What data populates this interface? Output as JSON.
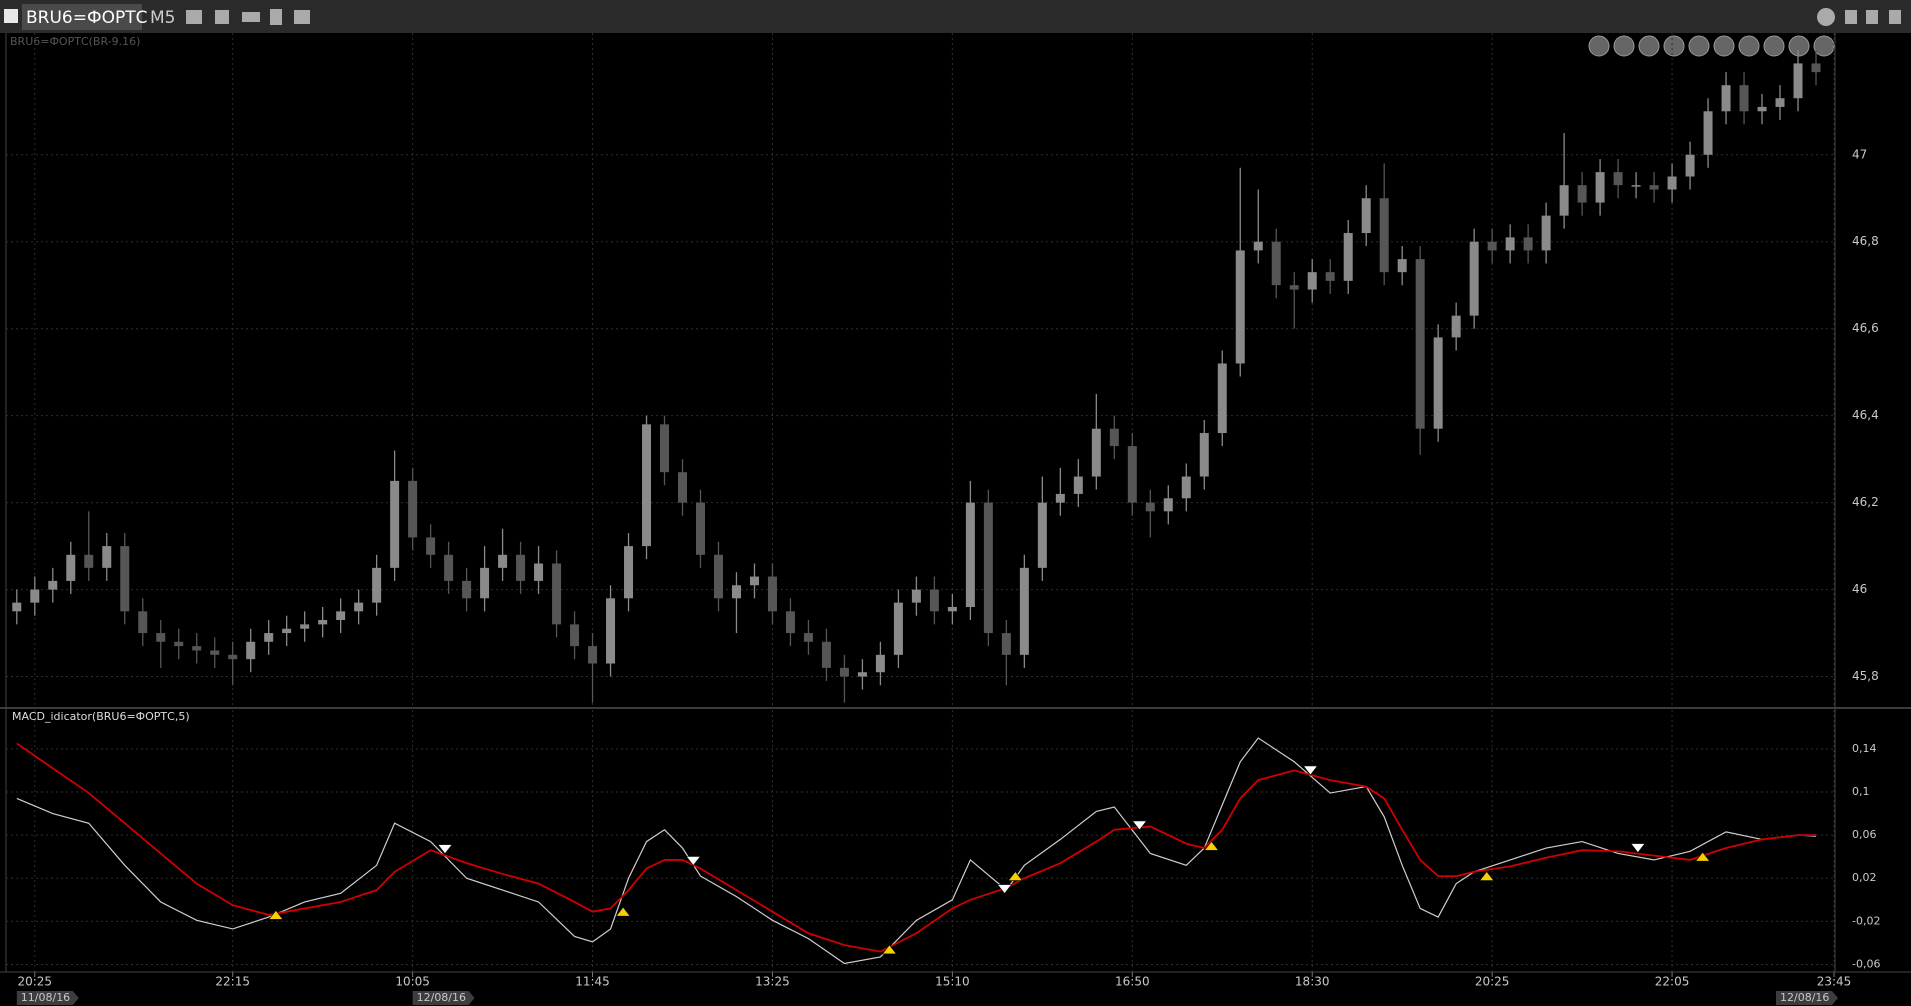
{
  "toolbar": {
    "symbol": "BRU6=ФОРТС",
    "timeframe": "M5"
  },
  "chart_data": [
    {
      "type": "candlestick",
      "title": "BRU6=ФОРТС(BR-9.16)",
      "up_color": "#8a8a8a",
      "down_color": "#565656",
      "grid": true,
      "xlim": [
        -0.6,
        101
      ],
      "xticks": [
        {
          "value": 1,
          "label": "20:25"
        },
        {
          "value": 12,
          "label": "22:15"
        },
        {
          "value": 22,
          "label": "10:05"
        },
        {
          "value": 32,
          "label": "11:45"
        },
        {
          "value": 42,
          "label": "13:25"
        },
        {
          "value": 52,
          "label": "15:10"
        },
        {
          "value": 62,
          "label": "16:50"
        },
        {
          "value": 72,
          "label": "18:30"
        },
        {
          "value": 82,
          "label": "20:25"
        },
        {
          "value": 92,
          "label": "22:05"
        },
        {
          "value": 101,
          "label": "23:45"
        }
      ],
      "ylim": [
        45.73,
        47.28
      ],
      "yticks": [
        {
          "value": 45.8,
          "label": "45,8"
        },
        46,
        {
          "value": 46.2,
          "label": "46,2"
        },
        {
          "value": 46.4,
          "label": "46,4"
        },
        {
          "value": 46.6,
          "label": "46,6"
        },
        {
          "value": 46.8,
          "label": "46,8"
        },
        47
      ],
      "open": [
        45.95,
        45.97,
        46.0,
        46.02,
        46.08,
        46.05,
        46.1,
        45.95,
        45.9,
        45.88,
        45.87,
        45.86,
        45.85,
        45.84,
        45.88,
        45.9,
        45.91,
        45.92,
        45.93,
        45.95,
        45.97,
        46.05,
        46.25,
        46.12,
        46.08,
        46.02,
        45.98,
        46.05,
        46.08,
        46.02,
        46.06,
        45.92,
        45.87,
        45.83,
        45.98,
        46.1,
        46.38,
        46.27,
        46.2,
        46.08,
        45.98,
        46.01,
        46.03,
        45.95,
        45.9,
        45.88,
        45.82,
        45.8,
        45.81,
        45.85,
        45.97,
        46.0,
        45.95,
        45.96,
        46.2,
        45.9,
        45.85,
        46.05,
        46.2,
        46.22,
        46.26,
        46.37,
        46.33,
        46.2,
        46.18,
        46.21,
        46.26,
        46.36,
        46.52,
        46.78,
        46.8,
        46.7,
        46.69,
        46.73,
        46.71,
        46.82,
        46.9,
        46.73,
        46.76,
        46.37,
        46.58,
        46.63,
        46.8,
        46.78,
        46.81,
        46.78,
        46.86,
        46.93,
        46.89,
        46.96,
        46.93,
        46.93,
        46.92,
        46.95,
        47.0,
        47.1,
        47.16,
        47.1,
        47.11,
        47.13,
        47.21
      ],
      "high": [
        46.0,
        46.03,
        46.05,
        46.11,
        46.18,
        46.13,
        46.13,
        45.98,
        45.93,
        45.91,
        45.9,
        45.89,
        45.88,
        45.91,
        45.93,
        45.94,
        45.95,
        45.96,
        45.98,
        46.0,
        46.08,
        46.32,
        46.28,
        46.15,
        46.11,
        46.05,
        46.1,
        46.14,
        46.11,
        46.1,
        46.09,
        45.95,
        45.9,
        46.01,
        46.13,
        46.4,
        46.4,
        46.3,
        46.23,
        46.11,
        46.04,
        46.06,
        46.06,
        45.98,
        45.93,
        45.91,
        45.85,
        45.84,
        45.88,
        46.0,
        46.03,
        46.03,
        45.99,
        46.25,
        46.23,
        45.93,
        46.08,
        46.26,
        46.28,
        46.3,
        46.45,
        46.4,
        46.36,
        46.23,
        46.24,
        46.29,
        46.39,
        46.55,
        46.97,
        46.92,
        46.83,
        46.73,
        46.76,
        46.76,
        46.85,
        46.93,
        46.98,
        46.79,
        46.79,
        46.61,
        46.66,
        46.83,
        46.83,
        46.84,
        46.84,
        46.89,
        47.05,
        46.96,
        46.99,
        46.99,
        46.96,
        46.96,
        46.98,
        47.03,
        47.13,
        47.19,
        47.19,
        47.14,
        47.16,
        47.24,
        47.24
      ],
      "low": [
        45.92,
        45.94,
        45.97,
        45.99,
        46.02,
        46.02,
        45.92,
        45.87,
        45.82,
        45.84,
        45.83,
        45.82,
        45.78,
        45.81,
        45.85,
        45.87,
        45.88,
        45.89,
        45.9,
        45.92,
        45.94,
        46.02,
        46.09,
        46.05,
        45.99,
        45.95,
        45.95,
        46.02,
        45.99,
        45.99,
        45.89,
        45.84,
        45.74,
        45.8,
        45.95,
        46.07,
        46.24,
        46.17,
        46.05,
        45.95,
        45.9,
        45.98,
        45.92,
        45.87,
        45.85,
        45.79,
        45.74,
        45.77,
        45.78,
        45.82,
        45.94,
        45.92,
        45.92,
        45.93,
        45.87,
        45.78,
        45.82,
        46.02,
        46.17,
        46.19,
        46.23,
        46.3,
        46.17,
        46.12,
        46.15,
        46.18,
        46.23,
        46.33,
        46.49,
        46.75,
        46.67,
        46.6,
        46.66,
        46.68,
        46.68,
        46.79,
        46.7,
        46.7,
        46.31,
        46.34,
        46.55,
        46.6,
        46.75,
        46.75,
        46.75,
        46.75,
        46.83,
        46.86,
        46.86,
        46.9,
        46.9,
        46.89,
        46.89,
        46.92,
        46.97,
        47.07,
        47.07,
        47.07,
        47.08,
        47.1,
        47.16
      ],
      "close": [
        45.97,
        46.0,
        46.02,
        46.08,
        46.05,
        46.1,
        45.95,
        45.9,
        45.88,
        45.87,
        45.86,
        45.85,
        45.84,
        45.88,
        45.9,
        45.91,
        45.92,
        45.93,
        45.95,
        45.97,
        46.05,
        46.25,
        46.12,
        46.08,
        46.02,
        45.98,
        46.05,
        46.08,
        46.02,
        46.06,
        45.92,
        45.87,
        45.83,
        45.98,
        46.1,
        46.38,
        46.27,
        46.2,
        46.08,
        45.98,
        46.01,
        46.03,
        45.95,
        45.9,
        45.88,
        45.82,
        45.8,
        45.81,
        45.85,
        45.97,
        46.0,
        45.95,
        45.96,
        46.2,
        45.9,
        45.85,
        46.05,
        46.2,
        46.22,
        46.26,
        46.37,
        46.33,
        46.2,
        46.18,
        46.21,
        46.26,
        46.36,
        46.52,
        46.78,
        46.8,
        46.7,
        46.69,
        46.73,
        46.71,
        46.82,
        46.9,
        46.73,
        46.76,
        46.37,
        46.58,
        46.63,
        46.8,
        46.78,
        46.81,
        46.78,
        46.86,
        46.93,
        46.89,
        46.96,
        46.93,
        46.93,
        46.92,
        46.95,
        47.0,
        47.1,
        47.16,
        47.1,
        47.11,
        47.13,
        47.21,
        47.19
      ]
    },
    {
      "type": "line",
      "title": "MACD_idicator(BRU6=ФОРТС,5)",
      "ylim": [
        -0.066,
        0.176
      ],
      "yticks": [
        {
          "value": -0.06,
          "label": "-0,06"
        },
        {
          "value": -0.02,
          "label": "-0,02"
        },
        {
          "value": 0.02,
          "label": "0,02"
        },
        {
          "value": 0.06,
          "label": "0,06"
        },
        {
          "value": 0.1,
          "label": "0,1"
        },
        {
          "value": 0.14,
          "label": "0,14"
        }
      ],
      "dates": [
        {
          "value": 0,
          "label": "11/08/16"
        },
        {
          "value": 22,
          "label": "12/08/16"
        },
        {
          "value": 101,
          "label": "12/08/16"
        }
      ],
      "x": [
        0,
        2,
        4,
        6,
        8,
        10,
        12,
        14,
        16,
        18,
        20,
        21,
        23,
        25,
        27,
        29,
        31,
        32,
        33,
        34,
        35,
        36,
        37,
        38,
        40,
        42,
        44,
        46,
        48,
        50,
        52,
        53,
        55,
        56,
        58,
        60,
        61,
        63,
        65,
        66,
        67,
        68,
        69,
        71,
        73,
        75,
        76,
        77,
        78,
        79,
        80,
        81,
        83,
        85,
        87,
        89,
        91,
        93,
        95,
        97,
        99,
        100
      ],
      "series": [
        {
          "color": "#cfcfcf",
          "values": [
            0.094,
            0.08,
            0.071,
            0.032,
            -0.002,
            -0.019,
            -0.027,
            -0.016,
            -0.002,
            0.006,
            0.032,
            0.071,
            0.054,
            0.02,
            0.009,
            -0.002,
            -0.034,
            -0.039,
            -0.027,
            0.02,
            0.054,
            0.065,
            0.048,
            0.022,
            0.003,
            -0.019,
            -0.036,
            -0.059,
            -0.053,
            -0.019,
            0.0,
            0.037,
            0.009,
            0.032,
            0.056,
            0.082,
            0.086,
            0.043,
            0.032,
            0.048,
            0.088,
            0.128,
            0.15,
            0.128,
            0.099,
            0.105,
            0.077,
            0.032,
            -0.008,
            -0.016,
            0.015,
            0.026,
            0.037,
            0.048,
            0.054,
            0.043,
            0.037,
            0.045,
            0.063,
            0.056,
            0.06,
            0.059
          ]
        },
        {
          "color": "#d00000",
          "values": [
            0.145,
            0.122,
            0.099,
            0.071,
            0.043,
            0.015,
            -0.005,
            -0.014,
            -0.008,
            -0.002,
            0.009,
            0.026,
            0.046,
            0.034,
            0.024,
            0.015,
            -0.002,
            -0.011,
            -0.008,
            0.009,
            0.029,
            0.037,
            0.037,
            0.029,
            0.009,
            -0.011,
            -0.031,
            -0.042,
            -0.048,
            -0.031,
            -0.008,
            0.0,
            0.011,
            0.02,
            0.034,
            0.054,
            0.065,
            0.068,
            0.052,
            0.048,
            0.065,
            0.094,
            0.111,
            0.12,
            0.111,
            0.105,
            0.094,
            0.065,
            0.037,
            0.022,
            0.022,
            0.026,
            0.031,
            0.039,
            0.046,
            0.045,
            0.041,
            0.037,
            0.048,
            0.056,
            0.06,
            0.06
          ]
        }
      ],
      "buy": {
        "color": "#f5d000",
        "x": [
          14.4,
          33.7,
          48.5,
          55.5,
          66.4,
          81.7,
          93.7
        ],
        "values": [
          -0.014,
          -0.011,
          -0.046,
          0.022,
          0.05,
          0.022,
          0.04
        ]
      },
      "sell": {
        "color": "#ffffff",
        "x": [
          23.8,
          37.6,
          54.9,
          62.4,
          71.9,
          90.1
        ],
        "values": [
          0.047,
          0.036,
          0.01,
          0.069,
          0.12,
          0.048
        ]
      }
    }
  ]
}
